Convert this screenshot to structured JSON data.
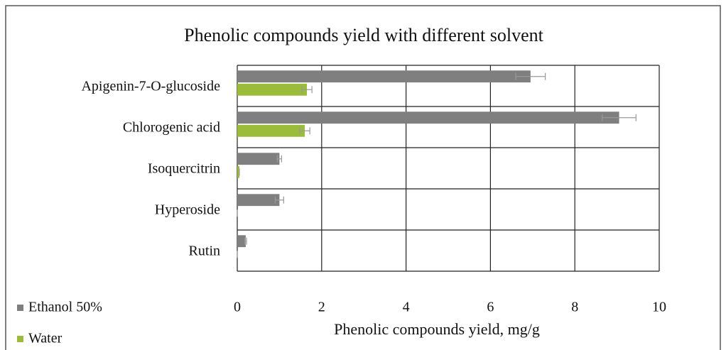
{
  "chart_data": {
    "type": "bar",
    "orientation": "horizontal",
    "title": "Phenolic compounds yield with different solvent",
    "xlabel": "Phenolic compounds yield, mg/g",
    "categories": [
      "Apigenin-7-O-glucoside",
      "Chlorogenic acid",
      "Isoquercitrin",
      "Hyperoside",
      "Rutin"
    ],
    "series": [
      {
        "name": "Ethanol 50%",
        "color": "#7f7f7f",
        "values": [
          6.95,
          9.05,
          1.0,
          1.0,
          0.2
        ],
        "errors": [
          0.35,
          0.4,
          0.05,
          0.1,
          0.02
        ]
      },
      {
        "name": "Water",
        "color": "#9bbb3a",
        "values": [
          1.65,
          1.6,
          0.05,
          0,
          0
        ],
        "errors": [
          0.12,
          0.12,
          0,
          0,
          0
        ]
      }
    ],
    "xlim": [
      0,
      10
    ],
    "xticks": [
      0,
      2,
      4,
      6,
      8,
      10
    ],
    "grid": true,
    "legend": "lower left"
  }
}
